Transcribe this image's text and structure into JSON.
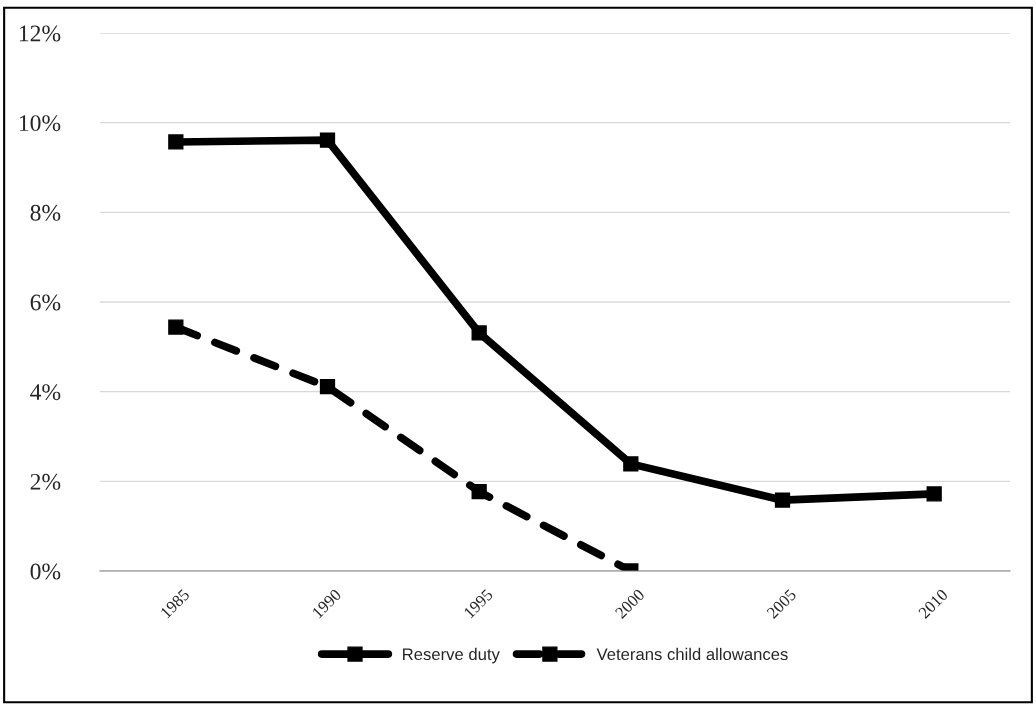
{
  "chart_data": {
    "type": "line",
    "categories": [
      "1985",
      "1990",
      "1995",
      "2000",
      "2005",
      "2010"
    ],
    "series": [
      {
        "name": "Reserve duty",
        "color": "#000000",
        "values": [
          9.57,
          9.61,
          5.31,
          2.39,
          1.58,
          1.72
        ],
        "line_style": "solid"
      },
      {
        "name": "Veterans child allowances",
        "color": "#000000",
        "values": [
          5.44,
          4.11,
          1.77,
          0,
          null,
          null
        ],
        "line_style": "dashed"
      }
    ],
    "ylim": [
      0,
      12
    ],
    "yticks": [
      {
        "value": 0,
        "label": "0%"
      },
      {
        "value": 2,
        "label": "2%"
      },
      {
        "value": 4,
        "label": "4%"
      },
      {
        "value": 6,
        "label": "6%"
      },
      {
        "value": 8,
        "label": "8%"
      },
      {
        "value": 10,
        "label": "10%"
      },
      {
        "value": 12,
        "label": "12%"
      }
    ],
    "grid": "y",
    "legend": "bottom",
    "marker": "square"
  }
}
